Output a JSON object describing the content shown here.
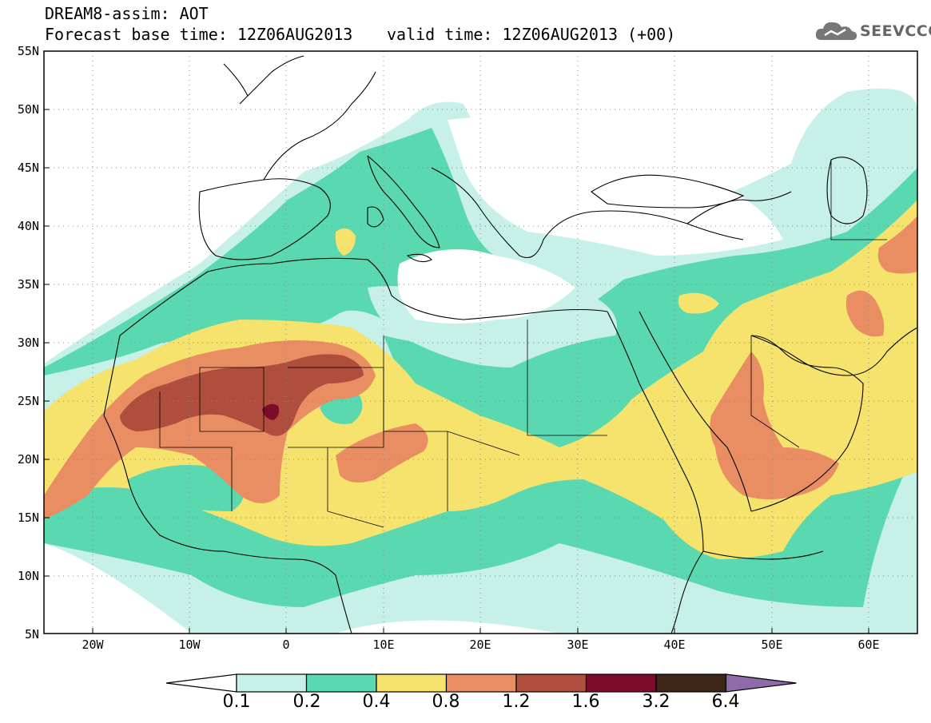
{
  "header": {
    "title": "DREAM8-assim: AOT",
    "base_time": "Forecast base time: 12Z06AUG2013",
    "valid_time": "valid time: 12Z06AUG2013 (+00)"
  },
  "logo": {
    "text": "SEEVCCC",
    "icon": "cloud-icon"
  },
  "map": {
    "lon_labels": [
      "20W",
      "10W",
      "0",
      "10E",
      "20E",
      "30E",
      "40E",
      "50E",
      "60E"
    ],
    "lat_labels": [
      "55N",
      "50N",
      "45N",
      "40N",
      "35N",
      "30N",
      "25N",
      "20N",
      "15N",
      "10N",
      "5N"
    ],
    "lon_range": [
      -25,
      65
    ],
    "lat_range": [
      5,
      55
    ]
  },
  "colorbar": {
    "labels": [
      "0.1",
      "0.2",
      "0.4",
      "0.8",
      "1.2",
      "1.6",
      "3.2",
      "6.4"
    ],
    "colors": [
      "#ffffff",
      "#c6f0e8",
      "#5ad8b0",
      "#f5e36e",
      "#e88e62",
      "#b04e3e",
      "#7d0c2c",
      "#3e2618",
      "#8e6aa8"
    ]
  },
  "palette": {
    "white": "#ffffff",
    "teal_light": "#c6f0e8",
    "teal": "#5ad8b0",
    "yellow": "#f5e36e",
    "orange": "#e88e62",
    "red_brown": "#b04e3e",
    "maroon": "#7d0c2c"
  }
}
